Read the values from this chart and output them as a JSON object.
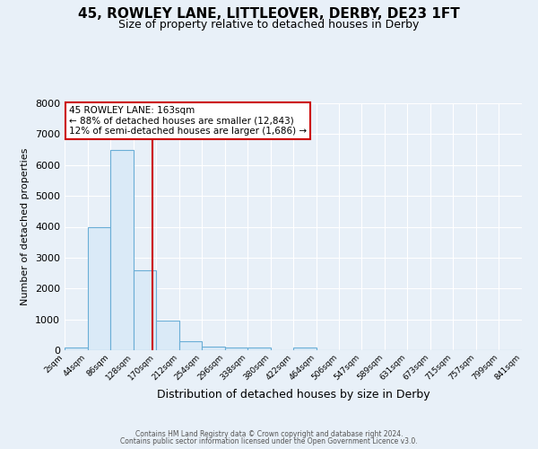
{
  "title": "45, ROWLEY LANE, LITTLEOVER, DERBY, DE23 1FT",
  "subtitle": "Size of property relative to detached houses in Derby",
  "xlabel": "Distribution of detached houses by size in Derby",
  "ylabel": "Number of detached properties",
  "bin_edges": [
    2,
    44,
    86,
    128,
    170,
    212,
    254,
    296,
    338,
    380,
    422,
    464,
    506,
    547,
    589,
    631,
    673,
    715,
    757,
    799,
    841
  ],
  "bin_heights": [
    100,
    4000,
    6500,
    2600,
    950,
    300,
    120,
    100,
    80,
    0,
    100,
    0,
    0,
    0,
    0,
    0,
    0,
    0,
    0,
    0
  ],
  "property_size": 163,
  "bar_color": "#daeaf7",
  "bar_edge_color": "#6aaed6",
  "vline_color": "#cc0000",
  "annotation_line1": "45 ROWLEY LANE: 163sqm",
  "annotation_line2": "← 88% of detached houses are smaller (12,843)",
  "annotation_line3": "12% of semi-detached houses are larger (1,686) →",
  "annotation_box_color": "#ffffff",
  "annotation_box_edge_color": "#cc0000",
  "ylim": [
    0,
    8000
  ],
  "background_color": "#e8f0f8",
  "plot_bg_color": "#e8f0f8",
  "grid_color": "#ffffff",
  "footer_line1": "Contains HM Land Registry data © Crown copyright and database right 2024.",
  "footer_line2": "Contains public sector information licensed under the Open Government Licence v3.0.",
  "title_fontsize": 11,
  "subtitle_fontsize": 9,
  "tick_labels": [
    "2sqm",
    "44sqm",
    "86sqm",
    "128sqm",
    "170sqm",
    "212sqm",
    "254sqm",
    "296sqm",
    "338sqm",
    "380sqm",
    "422sqm",
    "464sqm",
    "506sqm",
    "547sqm",
    "589sqm",
    "631sqm",
    "673sqm",
    "715sqm",
    "757sqm",
    "799sqm",
    "841sqm"
  ]
}
